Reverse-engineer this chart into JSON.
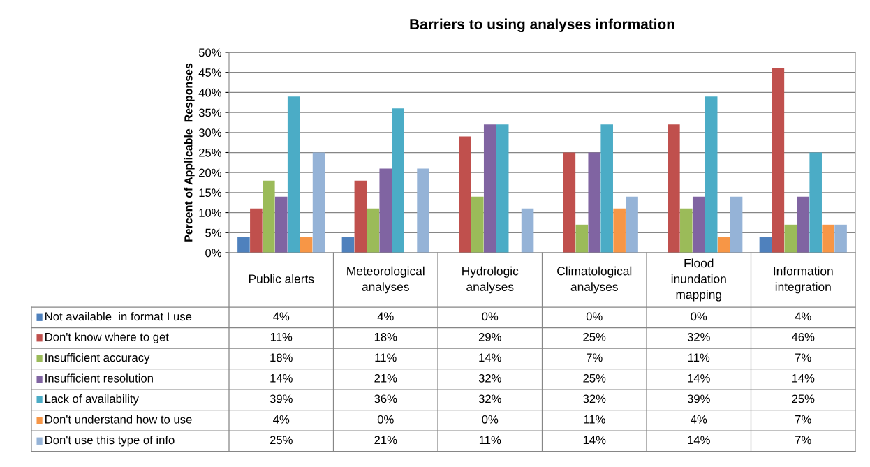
{
  "chart_data": {
    "type": "bar",
    "title": "Barriers to using analyses information",
    "ylabel": "Percent of Applicable  Responses",
    "categories": [
      "Public alerts",
      "Meteorological analyses",
      "Hydrologic analyses",
      "Climatological analyses",
      "Flood inundation mapping",
      "Information integration"
    ],
    "series": [
      {
        "name": "Not available  in format I use",
        "color": "#4f81bd",
        "values": [
          4,
          4,
          0,
          0,
          0,
          4
        ],
        "value_labels": [
          "4%",
          "4%",
          "0%",
          "0%",
          "0%",
          "4%"
        ]
      },
      {
        "name": "Don't know where to get",
        "color": "#c0504d",
        "values": [
          11,
          18,
          29,
          25,
          32,
          46
        ],
        "value_labels": [
          "11%",
          "18%",
          "29%",
          "25%",
          "32%",
          "46%"
        ]
      },
      {
        "name": "Insufficient accuracy",
        "color": "#9bbb59",
        "values": [
          18,
          11,
          14,
          7,
          11,
          7
        ],
        "value_labels": [
          "18%",
          "11%",
          "14%",
          "7%",
          "11%",
          "7%"
        ]
      },
      {
        "name": "Insufficient resolution",
        "color": "#8064a2",
        "values": [
          14,
          21,
          32,
          25,
          14,
          14
        ],
        "value_labels": [
          "14%",
          "21%",
          "32%",
          "25%",
          "14%",
          "14%"
        ]
      },
      {
        "name": "Lack of availability",
        "color": "#4bacc6",
        "values": [
          39,
          36,
          32,
          32,
          39,
          25
        ],
        "value_labels": [
          "39%",
          "36%",
          "32%",
          "32%",
          "39%",
          "25%"
        ]
      },
      {
        "name": "Don't understand how to use",
        "color": "#f79646",
        "values": [
          4,
          0,
          0,
          11,
          4,
          7
        ],
        "value_labels": [
          "4%",
          "0%",
          "0%",
          "11%",
          "4%",
          "7%"
        ]
      },
      {
        "name": "Don't use this type of info",
        "color": "#95b3d7",
        "values": [
          25,
          21,
          11,
          14,
          14,
          7
        ],
        "value_labels": [
          "25%",
          "21%",
          "11%",
          "14%",
          "14%",
          "7%"
        ]
      }
    ],
    "ylim": [
      0,
      50
    ],
    "yticks": [
      {
        "value": 0,
        "label": "0%"
      },
      {
        "value": 5,
        "label": "5%"
      },
      {
        "value": 10,
        "label": "10%"
      },
      {
        "value": 15,
        "label": "15%"
      },
      {
        "value": 20,
        "label": "20%"
      },
      {
        "value": 25,
        "label": "25%"
      },
      {
        "value": 30,
        "label": "30%"
      },
      {
        "value": 35,
        "label": "35%"
      },
      {
        "value": 40,
        "label": "40%"
      },
      {
        "value": 45,
        "label": "45%"
      },
      {
        "value": 50,
        "label": "50%"
      }
    ],
    "grid": "y",
    "legend": "bottom"
  }
}
